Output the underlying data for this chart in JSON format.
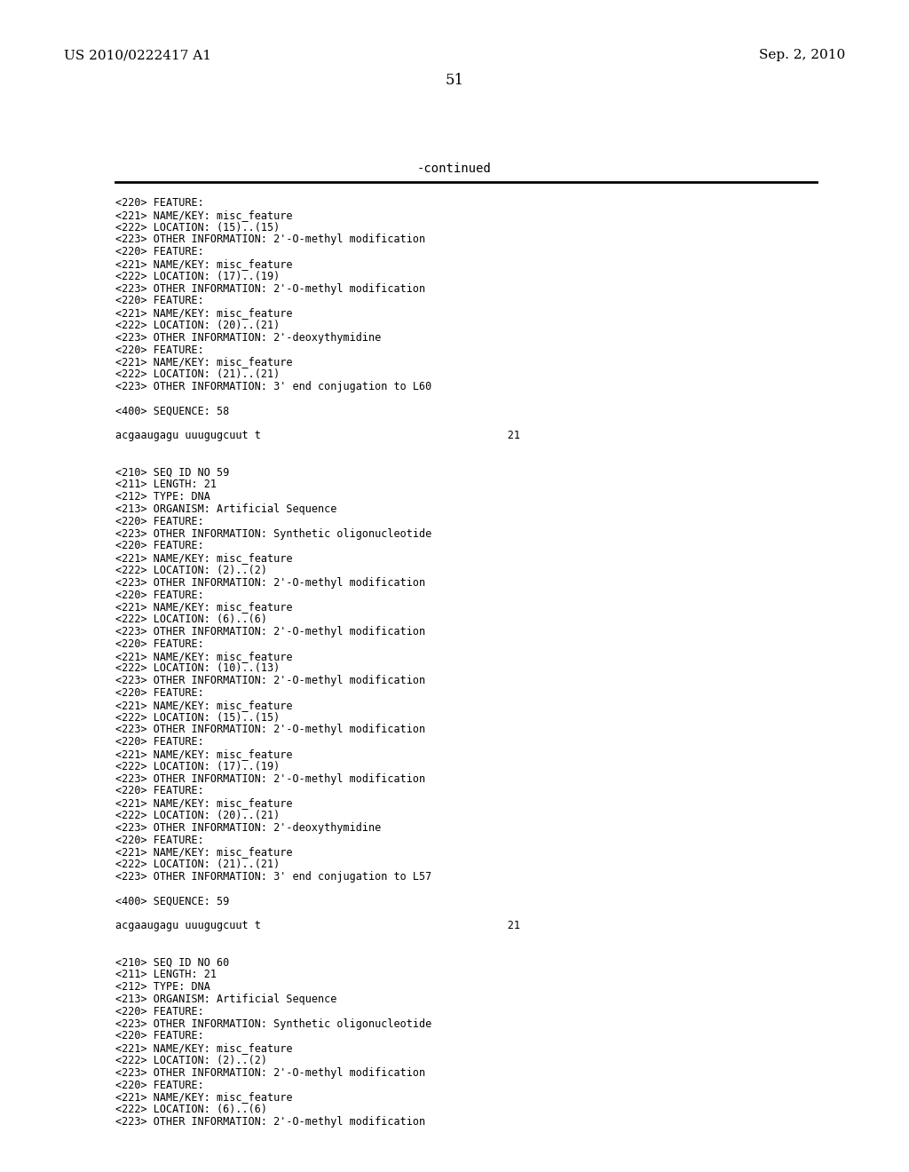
{
  "bg_color": "#ffffff",
  "header_left": "US 2010/0222417 A1",
  "header_right": "Sep. 2, 2010",
  "page_number": "51",
  "continued_text": "-continued",
  "body_lines": [
    "<220> FEATURE:",
    "<221> NAME/KEY: misc_feature",
    "<222> LOCATION: (15)..(15)",
    "<223> OTHER INFORMATION: 2'-O-methyl modification",
    "<220> FEATURE:",
    "<221> NAME/KEY: misc_feature",
    "<222> LOCATION: (17)..(19)",
    "<223> OTHER INFORMATION: 2'-O-methyl modification",
    "<220> FEATURE:",
    "<221> NAME/KEY: misc_feature",
    "<222> LOCATION: (20)..(21)",
    "<223> OTHER INFORMATION: 2'-deoxythymidine",
    "<220> FEATURE:",
    "<221> NAME/KEY: misc_feature",
    "<222> LOCATION: (21)..(21)",
    "<223> OTHER INFORMATION: 3' end conjugation to L60",
    "",
    "<400> SEQUENCE: 58",
    "",
    "acgaaugagu uuugugcuut t                                       21",
    "",
    "",
    "<210> SEQ ID NO 59",
    "<211> LENGTH: 21",
    "<212> TYPE: DNA",
    "<213> ORGANISM: Artificial Sequence",
    "<220> FEATURE:",
    "<223> OTHER INFORMATION: Synthetic oligonucleotide",
    "<220> FEATURE:",
    "<221> NAME/KEY: misc_feature",
    "<222> LOCATION: (2)..(2)",
    "<223> OTHER INFORMATION: 2'-O-methyl modification",
    "<220> FEATURE:",
    "<221> NAME/KEY: misc_feature",
    "<222> LOCATION: (6)..(6)",
    "<223> OTHER INFORMATION: 2'-O-methyl modification",
    "<220> FEATURE:",
    "<221> NAME/KEY: misc_feature",
    "<222> LOCATION: (10)..(13)",
    "<223> OTHER INFORMATION: 2'-O-methyl modification",
    "<220> FEATURE:",
    "<221> NAME/KEY: misc_feature",
    "<222> LOCATION: (15)..(15)",
    "<223> OTHER INFORMATION: 2'-O-methyl modification",
    "<220> FEATURE:",
    "<221> NAME/KEY: misc_feature",
    "<222> LOCATION: (17)..(19)",
    "<223> OTHER INFORMATION: 2'-O-methyl modification",
    "<220> FEATURE:",
    "<221> NAME/KEY: misc_feature",
    "<222> LOCATION: (20)..(21)",
    "<223> OTHER INFORMATION: 2'-deoxythymidine",
    "<220> FEATURE:",
    "<221> NAME/KEY: misc_feature",
    "<222> LOCATION: (21)..(21)",
    "<223> OTHER INFORMATION: 3' end conjugation to L57",
    "",
    "<400> SEQUENCE: 59",
    "",
    "acgaaugagu uuugugcuut t                                       21",
    "",
    "",
    "<210> SEQ ID NO 60",
    "<211> LENGTH: 21",
    "<212> TYPE: DNA",
    "<213> ORGANISM: Artificial Sequence",
    "<220> FEATURE:",
    "<223> OTHER INFORMATION: Synthetic oligonucleotide",
    "<220> FEATURE:",
    "<221> NAME/KEY: misc_feature",
    "<222> LOCATION: (2)..(2)",
    "<223> OTHER INFORMATION: 2'-O-methyl modification",
    "<220> FEATURE:",
    "<221> NAME/KEY: misc_feature",
    "<222> LOCATION: (6)..(6)",
    "<223> OTHER INFORMATION: 2'-O-methyl modification"
  ],
  "font_size_header": 11,
  "font_size_body": 8.5,
  "font_size_page": 12,
  "font_size_continued": 10,
  "text_color": "#000000",
  "line_color": "#000000"
}
